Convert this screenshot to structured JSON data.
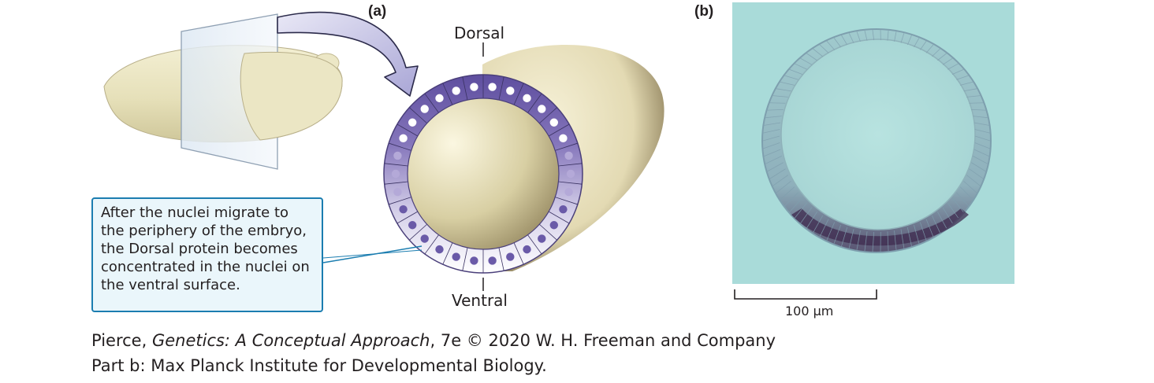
{
  "panels": {
    "a_label": "(a)",
    "b_label": "(b)"
  },
  "diagram": {
    "dorsal_label": "Dorsal",
    "ventral_label": "Ventral",
    "callout_text": "After the nuclei migrate to the periphery of the embryo, the Dorsal protein becomes concentrated in the nuclei on the ventral surface."
  },
  "micrograph": {
    "scale_bar_label": "100 µm"
  },
  "credits": {
    "prefix": "Pierce, ",
    "book_title": "Genetics: A Conceptual Approach",
    "suffix": ", 7e © 2020 W. H. Freeman and Company",
    "line2": "Part b: Max Planck Institute for Developmental Biology."
  },
  "colors": {
    "embryo": "#e8e3bf",
    "nucleus_band": "#6a5aa8",
    "callout_border": "#1b7db0",
    "callout_fill": "#eaf6fb",
    "micrograph_background": "#a9dbd9"
  }
}
